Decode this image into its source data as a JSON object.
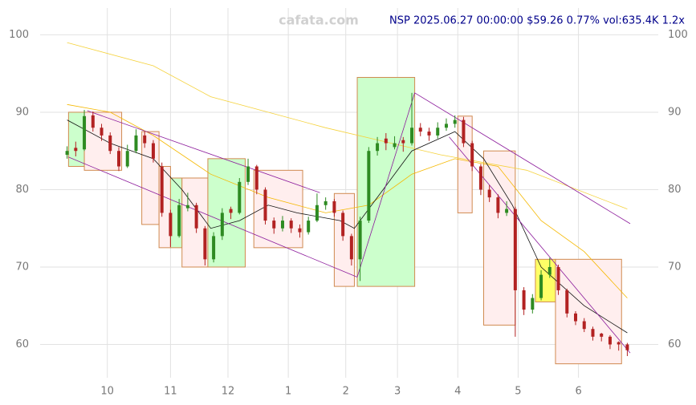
{
  "chart_data": {
    "type": "candlestick",
    "title": "NSP 2025.06.27 00:00:00 $59.26 0.77% vol:635.4K 1.2x",
    "watermark": "cafata.com",
    "xlim": [
      -1,
      196
    ],
    "ylim": [
      55.7,
      104.5
    ],
    "xticks": [
      {
        "value": 14,
        "label": "10"
      },
      {
        "value": 36,
        "label": "11"
      },
      {
        "value": 56,
        "label": "12"
      },
      {
        "value": 77,
        "label": "1"
      },
      {
        "value": 97,
        "label": "2"
      },
      {
        "value": 115,
        "label": "3"
      },
      {
        "value": 136,
        "label": "4"
      },
      {
        "value": 157,
        "label": "5"
      },
      {
        "value": 178,
        "label": "6"
      }
    ],
    "yticks": [
      60,
      70,
      80,
      90,
      100
    ],
    "grid": true,
    "up_color": "#2e8b22",
    "down_color": "#b22222",
    "x": [
      0,
      3,
      6,
      9,
      12,
      15,
      18,
      21,
      24,
      27,
      30,
      33,
      36,
      39,
      42,
      45,
      48,
      51,
      54,
      57,
      60,
      63,
      66,
      69,
      72,
      75,
      78,
      81,
      84,
      87,
      90,
      93,
      96,
      99,
      102,
      105,
      108,
      111,
      114,
      117,
      120,
      123,
      126,
      129,
      132,
      135,
      138,
      141,
      144,
      147,
      150,
      153,
      156,
      159,
      162,
      165,
      168,
      171,
      174,
      177,
      180,
      183,
      186,
      189,
      192,
      195
    ],
    "ohlc": [
      [
        84.5,
        85.6,
        84,
        85
      ],
      [
        85.4,
        86.2,
        84.3,
        85
      ],
      [
        85.2,
        90.3,
        85,
        89.5
      ],
      [
        89.6,
        90.1,
        87.5,
        88
      ],
      [
        88,
        88.5,
        86.3,
        87
      ],
      [
        87,
        87.4,
        84.6,
        85
      ],
      [
        85,
        85.5,
        82.4,
        83
      ],
      [
        83,
        85.8,
        82.8,
        85
      ],
      [
        85,
        87.8,
        84.7,
        87
      ],
      [
        87,
        87.5,
        85.4,
        86
      ],
      [
        86,
        86.4,
        83.5,
        84
      ],
      [
        83,
        83.5,
        76.5,
        77
      ],
      [
        77,
        77.4,
        72.6,
        74
      ],
      [
        74,
        78.8,
        73.8,
        78
      ],
      [
        77.6,
        79.6,
        77.2,
        78
      ],
      [
        78,
        78.3,
        74.4,
        75
      ],
      [
        75,
        75.3,
        70.2,
        71
      ],
      [
        71,
        74.5,
        70.6,
        74
      ],
      [
        74,
        77.6,
        73.5,
        77
      ],
      [
        77.5,
        77.8,
        76.2,
        77
      ],
      [
        77,
        81.5,
        76.8,
        81
      ],
      [
        81,
        84,
        80.6,
        83
      ],
      [
        83,
        83.2,
        79.4,
        80
      ],
      [
        80,
        80.3,
        75.5,
        76
      ],
      [
        76,
        76.4,
        74.3,
        75
      ],
      [
        75,
        76.6,
        74.6,
        76
      ],
      [
        76,
        76.3,
        74.4,
        75
      ],
      [
        75,
        75.5,
        73.8,
        74.5
      ],
      [
        74.5,
        76.5,
        74.2,
        76
      ],
      [
        76,
        79.5,
        75.8,
        78
      ],
      [
        78,
        79,
        77.4,
        78.5
      ],
      [
        78.5,
        78.8,
        76.5,
        77
      ],
      [
        77,
        77.3,
        73.4,
        74
      ],
      [
        74,
        74.3,
        70.2,
        71
      ],
      [
        71,
        76.5,
        68.2,
        76
      ],
      [
        76,
        85.5,
        75.7,
        85
      ],
      [
        85,
        86.8,
        84.4,
        86
      ],
      [
        86.6,
        87.3,
        85.1,
        86
      ],
      [
        85.5,
        86.9,
        85.2,
        86
      ],
      [
        86.4,
        86.8,
        84.9,
        86
      ],
      [
        86,
        92.5,
        85.7,
        88
      ],
      [
        88,
        88.6,
        86.9,
        87.5
      ],
      [
        87.5,
        88,
        86.3,
        87
      ],
      [
        87,
        88.7,
        86.6,
        88
      ],
      [
        88,
        89.2,
        87.6,
        88.5
      ],
      [
        88.5,
        89.6,
        88,
        89
      ],
      [
        89,
        89.4,
        85.5,
        86
      ],
      [
        86,
        86.3,
        82.4,
        83
      ],
      [
        83,
        83.3,
        79.3,
        80
      ],
      [
        80,
        80.6,
        78.4,
        79
      ],
      [
        79,
        79.4,
        76.3,
        77
      ],
      [
        77,
        78.5,
        76.6,
        77.5
      ],
      [
        77.5,
        77.8,
        61,
        67
      ],
      [
        67,
        67.4,
        63.8,
        64.5
      ],
      [
        64.5,
        66.5,
        64,
        66
      ],
      [
        66,
        69.6,
        65.7,
        69
      ],
      [
        69,
        71.2,
        68.6,
        70
      ],
      [
        70,
        70.3,
        66.4,
        67
      ],
      [
        67,
        67.2,
        63.5,
        64
      ],
      [
        64,
        64.3,
        62.5,
        63
      ],
      [
        63,
        63.4,
        61.6,
        62
      ],
      [
        62,
        62.3,
        60.5,
        61
      ],
      [
        61.4,
        61.5,
        60.4,
        61
      ],
      [
        61,
        61.2,
        59.4,
        60
      ],
      [
        60.3,
        60.4,
        59.2,
        60
      ],
      [
        60,
        60.2,
        58.5,
        59.26
      ]
    ],
    "lines": [
      {
        "color": "#f5d23c",
        "x": [
          0,
          30,
          50,
          90,
          130,
          160,
          195
        ],
        "values": [
          99,
          96,
          92,
          88,
          84.5,
          82.5,
          77.5
        ]
      },
      {
        "color": "#f5b800",
        "x": [
          0,
          15,
          30,
          50,
          70,
          90,
          105,
          120,
          135,
          150,
          165,
          180,
          195
        ],
        "values": [
          91,
          90,
          87,
          82,
          79,
          77,
          78,
          82,
          84,
          83,
          76,
          72,
          66
        ]
      },
      {
        "color": "#111111",
        "x": [
          0,
          15,
          30,
          40,
          50,
          60,
          70,
          80,
          95,
          100,
          110,
          120,
          135,
          145,
          155,
          165,
          180,
          195
        ],
        "values": [
          89,
          86,
          84,
          80,
          75,
          76,
          78,
          77,
          76,
          75,
          80,
          85,
          87.5,
          84,
          78,
          70,
          65,
          61.5
        ]
      }
    ],
    "trend_lines": [
      {
        "color": "#8b1a9b",
        "x": [
          0.5,
          101
        ],
        "values": [
          84.2,
          68.7
        ]
      },
      {
        "color": "#8b1a9b",
        "x": [
          7,
          88
        ],
        "values": [
          90.2,
          79.6
        ]
      },
      {
        "color": "#8b1a9b",
        "x": [
          101,
          121
        ],
        "values": [
          68.7,
          92.5
        ]
      },
      {
        "color": "#8b1a9b",
        "x": [
          121,
          196
        ],
        "values": [
          92.5,
          75.6
        ]
      },
      {
        "color": "#8b1a9b",
        "x": [
          133,
          196
        ],
        "values": [
          86.8,
          58.9
        ]
      }
    ],
    "boxes": [
      {
        "color": "#ccffcc",
        "x": [
          0.5,
          6
        ],
        "values": [
          90,
          83
        ]
      },
      {
        "color": "#ffeeee",
        "x": [
          6,
          19
        ],
        "values": [
          90,
          82.5
        ]
      },
      {
        "color": "#ffeeee",
        "x": [
          26,
          32
        ],
        "values": [
          87.5,
          75.5
        ]
      },
      {
        "color": "#ffeeee",
        "x": [
          32,
          36
        ],
        "values": [
          83,
          72.5
        ]
      },
      {
        "color": "#ccffcc",
        "x": [
          36,
          40
        ],
        "values": [
          81.5,
          72.5
        ]
      },
      {
        "color": "#ffeeee",
        "x": [
          40,
          49
        ],
        "values": [
          81.5,
          70
        ]
      },
      {
        "color": "#ccffcc",
        "x": [
          49,
          62
        ],
        "values": [
          84,
          70
        ]
      },
      {
        "color": "#ffeeee",
        "x": [
          65,
          82
        ],
        "values": [
          82.5,
          72.5
        ]
      },
      {
        "color": "#ffeeee",
        "x": [
          93,
          100
        ],
        "values": [
          79.5,
          67.5
        ]
      },
      {
        "color": "#ccffcc",
        "x": [
          101,
          121
        ],
        "values": [
          94.5,
          67.5
        ]
      },
      {
        "color": "#ffeeee",
        "x": [
          136,
          141
        ],
        "values": [
          89.5,
          77
        ]
      },
      {
        "color": "#ffeeee",
        "x": [
          145,
          156
        ],
        "values": [
          85,
          62.5
        ]
      },
      {
        "color": "#ffff66",
        "x": [
          163,
          170
        ],
        "values": [
          71,
          65.5
        ]
      },
      {
        "color": "#ffeeee",
        "x": [
          170,
          193
        ],
        "values": [
          71,
          57.5
        ]
      }
    ]
  }
}
